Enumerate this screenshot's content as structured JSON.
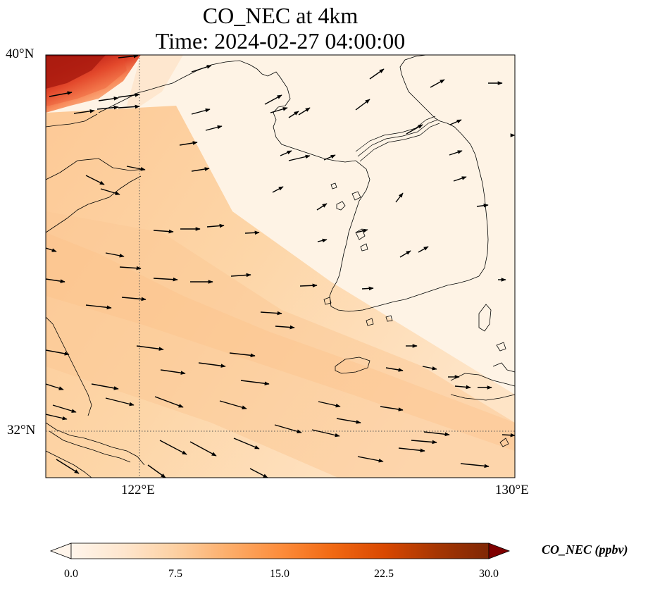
{
  "title": {
    "line1": "CO_NEC at 4km",
    "line2": "Time: 2024-02-27 04:00:00"
  },
  "axes": {
    "lat_ticks": [
      "40°N",
      "32°N"
    ],
    "lon_ticks": [
      "122°E",
      "130°E"
    ],
    "extent": {
      "lon_min": 120,
      "lon_max": 130,
      "lat_min": 31,
      "lat_max": 40
    },
    "gridlines": {
      "lon": 122,
      "lat": 32,
      "style": "dotted"
    }
  },
  "colorbar": {
    "label": "CO_NEC (ppbv)",
    "ticks": [
      "0.0",
      "7.5",
      "15.0",
      "22.5",
      "30.0"
    ],
    "range": [
      0,
      30
    ],
    "colormap": [
      "#fff5eb",
      "#fee6ce",
      "#fdd0a2",
      "#fdae6b",
      "#fd8d3c",
      "#f16913",
      "#d94801",
      "#a63603",
      "#7f2704"
    ],
    "extend": "both"
  },
  "colors": {
    "background_field": "#fef3e6",
    "plume": "#fdd3a0",
    "hotspot": "#8b0000",
    "coastline": "#000000",
    "wind_arrow": "#000000"
  },
  "layers": [
    "co-concentration-field",
    "coastlines",
    "wind-vectors",
    "gridlines"
  ]
}
